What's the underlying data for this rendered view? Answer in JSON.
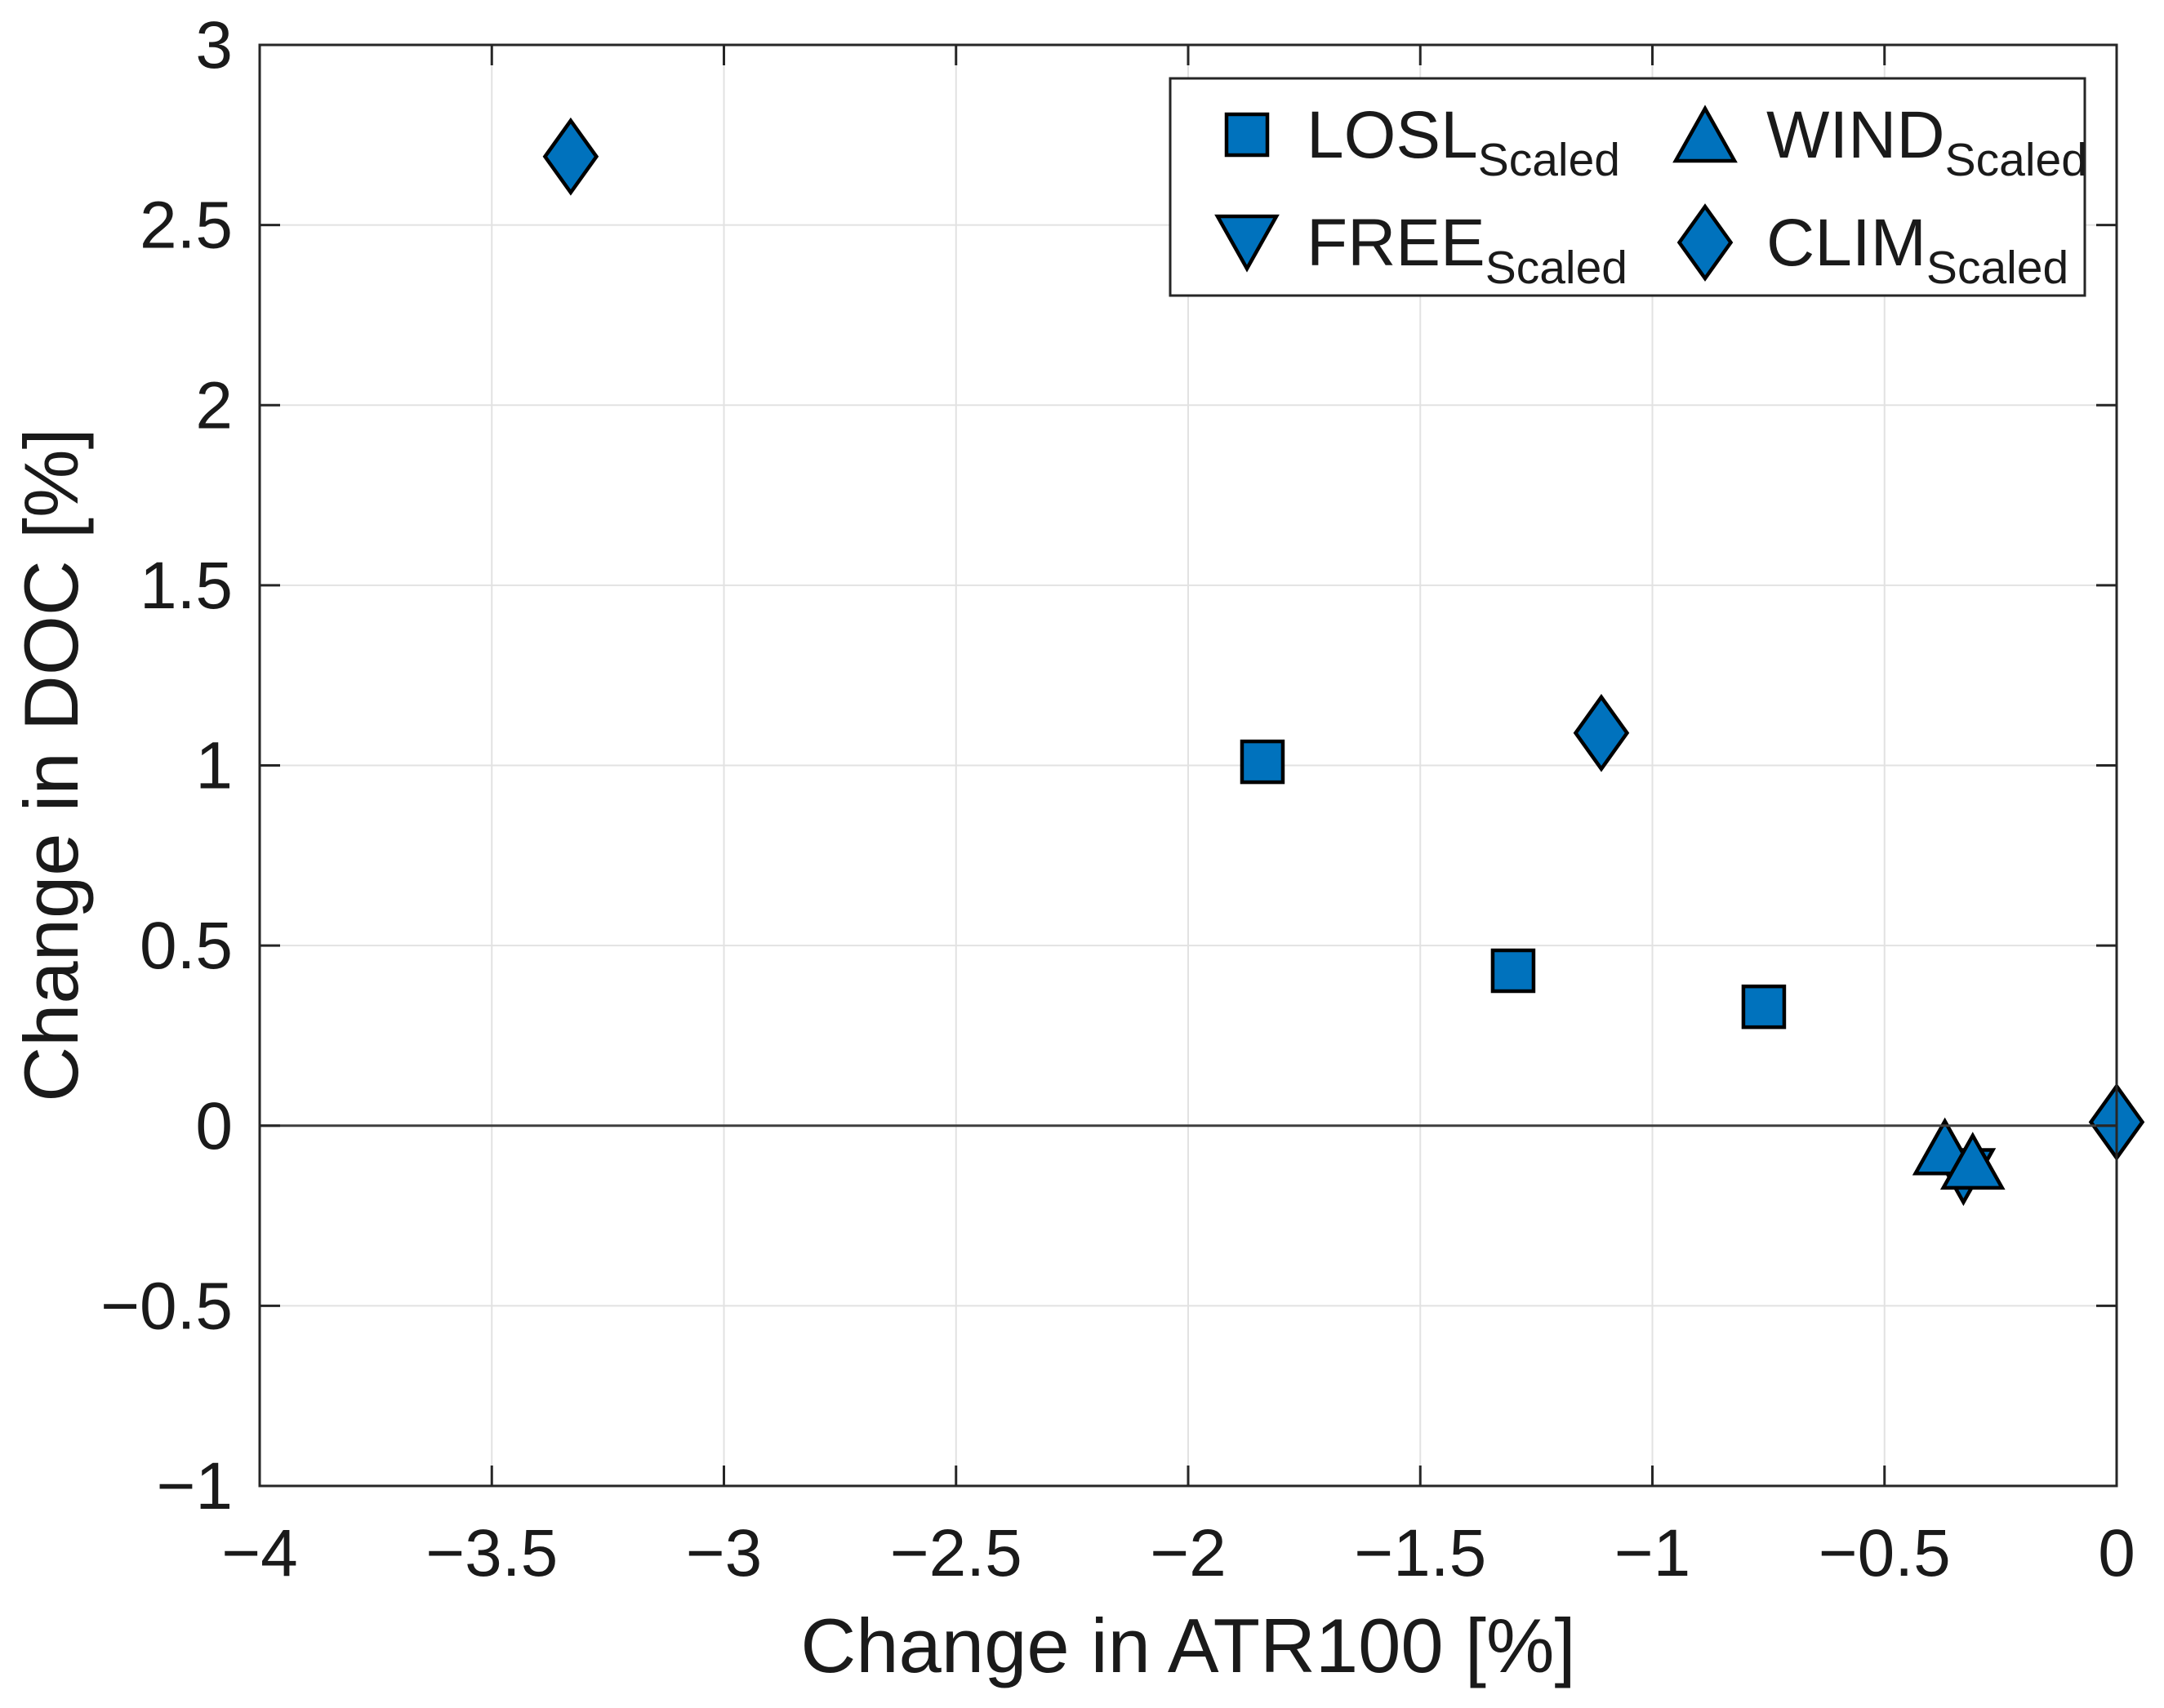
{
  "chart_data": {
    "type": "scatter",
    "title": "",
    "xlabel": "Change in ATR100 [%]",
    "ylabel": "Change in DOC [%]",
    "xlim": [
      -4,
      0
    ],
    "ylim": [
      -1,
      3
    ],
    "xticks": [
      -4,
      -3.5,
      -3,
      -2.5,
      -2,
      -1.5,
      -1,
      -0.5,
      0
    ],
    "xtick_labels": [
      "−4",
      "−3.5",
      "−3",
      "−2.5",
      "−2",
      "−1.5",
      "−1",
      "−0.5",
      "0"
    ],
    "yticks": [
      -1,
      -0.5,
      0,
      0.5,
      1,
      1.5,
      2,
      2.5,
      3
    ],
    "ytick_labels": [
      "−1",
      "−0.5",
      "0",
      "0.5",
      "1",
      "1.5",
      "2",
      "2.5",
      "3"
    ],
    "grid": true,
    "zero_line_y": 0,
    "legend_position": "top-right",
    "legend_columns": 2,
    "legend_fill_order": "column-major",
    "series": [
      {
        "name": "LOSL",
        "subscript": "Scaled",
        "marker": "square",
        "points": [
          [
            -1.84,
            1.01
          ],
          [
            -1.3,
            0.43
          ],
          [
            -0.76,
            0.33
          ]
        ]
      },
      {
        "name": "FREE",
        "subscript": "Scaled",
        "marker": "triangle-down",
        "points": [
          [
            -0.33,
            -0.14
          ]
        ]
      },
      {
        "name": "WIND",
        "subscript": "Scaled",
        "marker": "triangle-up",
        "points": [
          [
            -0.37,
            -0.06
          ],
          [
            -0.31,
            -0.1
          ]
        ]
      },
      {
        "name": "CLIM",
        "subscript": "Scaled",
        "marker": "diamond",
        "points": [
          [
            -3.33,
            2.69
          ],
          [
            -1.11,
            1.09
          ],
          [
            0.0,
            0.01
          ]
        ]
      }
    ],
    "colors": {
      "marker_fill": "#0072BD",
      "marker_stroke": "#000000",
      "grid": "#e2e2e2",
      "axis": "#262626",
      "zero_line": "#3f3f3f",
      "text": "#1a1a1a",
      "background": "#ffffff"
    }
  }
}
